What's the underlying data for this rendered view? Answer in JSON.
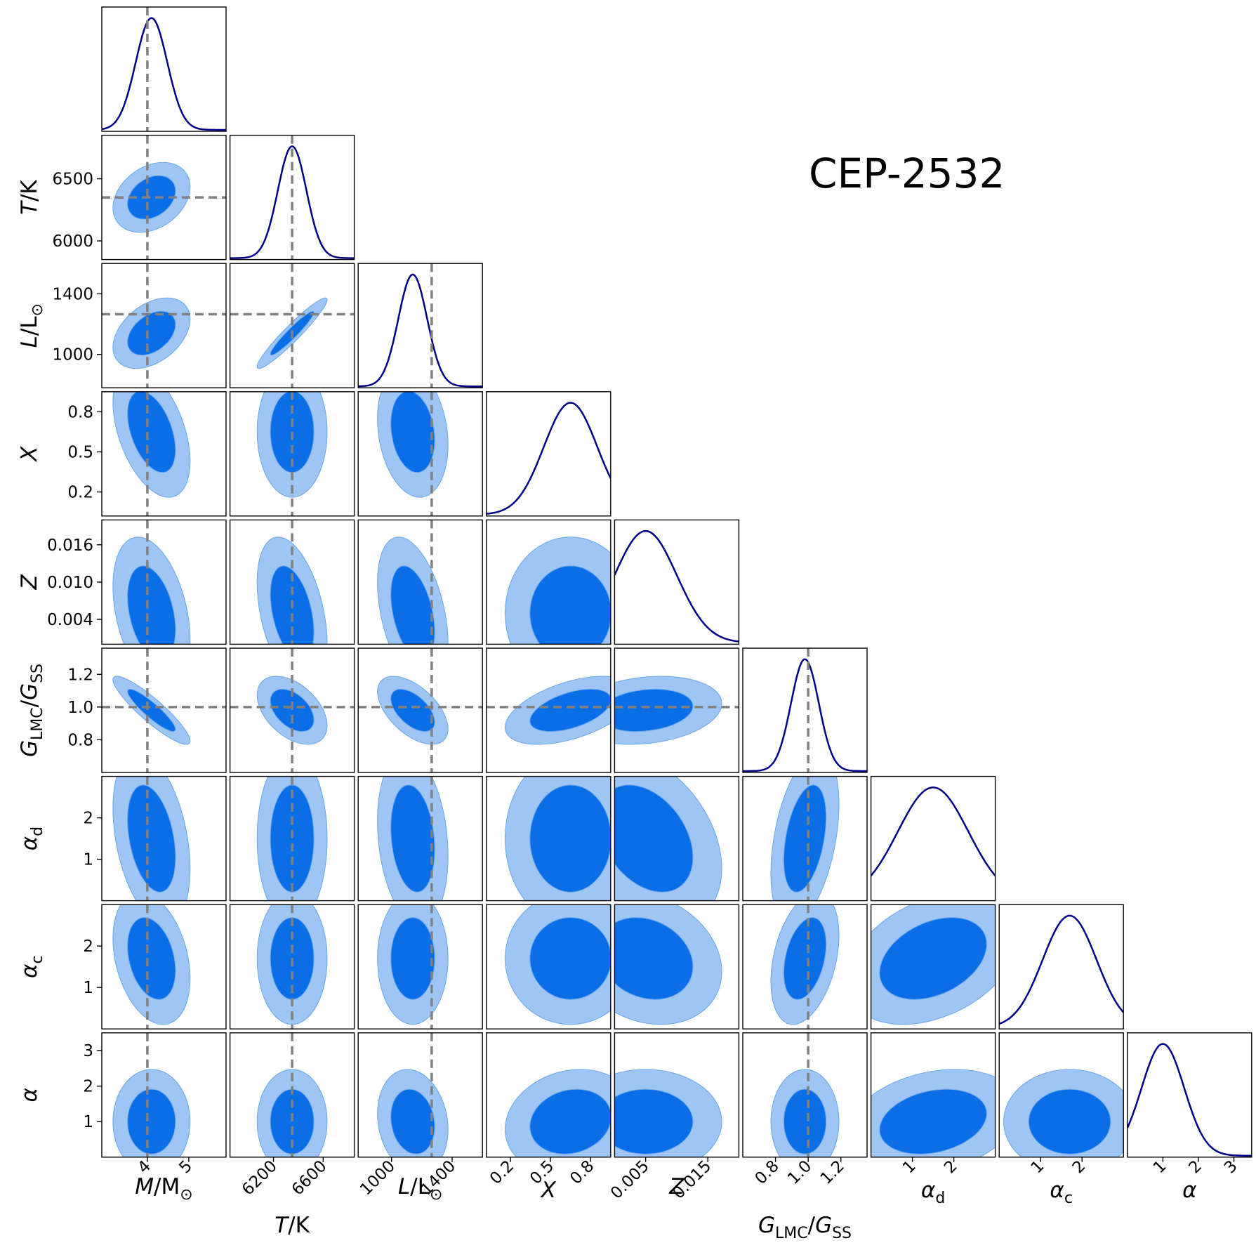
{
  "chart_data": {
    "type": "corner",
    "title": "CEP-2532",
    "colors": {
      "outer_contour": "#9ec5f4",
      "inner_contour": "#0a6ee6",
      "contour_edge": "#6aa6ea",
      "marginal_line": "#00008b",
      "truth_line": "#808080"
    },
    "parameters": [
      {
        "key": "M",
        "label_parts": [
          [
            "i",
            "M"
          ],
          [
            "n",
            "/M"
          ],
          [
            "sub",
            "⊙"
          ]
        ],
        "range": [
          2.9,
          5.9
        ],
        "ticks": [
          4,
          5
        ],
        "tick_labels": [
          "4",
          "5"
        ],
        "truth": 4.0,
        "mean": 4.1,
        "sd": 0.38
      },
      {
        "key": "T",
        "label_parts": [
          [
            "i",
            "T"
          ],
          [
            "n",
            "/K"
          ]
        ],
        "range": [
          5850,
          6850
        ],
        "ticks": [
          6000,
          6500
        ],
        "tick_labels": [
          "6000",
          "6500"
        ],
        "xticks": [
          6200,
          6600
        ],
        "xtick_labels": [
          "6200",
          "6600"
        ],
        "truth": 6350,
        "mean": 6350,
        "sd": 115
      },
      {
        "key": "L",
        "label_parts": [
          [
            "i",
            "L"
          ],
          [
            "n",
            "/L"
          ],
          [
            "sub",
            "⊙"
          ]
        ],
        "range": [
          780,
          1600
        ],
        "ticks": [
          1000,
          1400
        ],
        "tick_labels": [
          "1000",
          "1400"
        ],
        "truth": 1265,
        "mean": 1140,
        "sd": 95
      },
      {
        "key": "X",
        "label_parts": [
          [
            "i",
            "X"
          ]
        ],
        "range": [
          0.02,
          0.95
        ],
        "ticks": [
          0.2,
          0.5,
          0.8
        ],
        "tick_labels": [
          "0.2",
          "0.5",
          "0.8"
        ],
        "truth": null,
        "mean": 0.65,
        "sd": 0.2
      },
      {
        "key": "Z",
        "label_parts": [
          [
            "i",
            "Z"
          ]
        ],
        "range": [
          0.0,
          0.02
        ],
        "ticks": [
          0.004,
          0.01,
          0.016
        ],
        "tick_labels": [
          "0.004",
          "0.010",
          "0.016"
        ],
        "xticks": [
          0.005,
          0.015
        ],
        "xtick_labels": [
          "0.005",
          "0.015"
        ],
        "truth": null,
        "mean": 0.005,
        "sd": 0.005
      },
      {
        "key": "G",
        "label_parts": [
          [
            "i",
            "G"
          ],
          [
            "sub",
            "LMC"
          ],
          [
            "n",
            "/"
          ],
          [
            "i",
            "G"
          ],
          [
            "sub",
            "SS"
          ]
        ],
        "range": [
          0.6,
          1.36
        ],
        "ticks": [
          0.8,
          1.0,
          1.2
        ],
        "tick_labels": [
          "0.8",
          "1.0",
          "1.2"
        ],
        "truth": 1.0,
        "mean": 0.98,
        "sd": 0.085
      },
      {
        "key": "ad",
        "label_parts": [
          [
            "i",
            "α"
          ],
          [
            "sub",
            "d"
          ]
        ],
        "range": [
          0.0,
          3.0
        ],
        "ticks": [
          1,
          2
        ],
        "tick_labels": [
          "1",
          "2"
        ],
        "truth": null,
        "mean": 1.5,
        "sd": 0.85
      },
      {
        "key": "ac",
        "label_parts": [
          [
            "i",
            "α"
          ],
          [
            "sub",
            "c"
          ]
        ],
        "range": [
          0.0,
          3.0
        ],
        "ticks": [
          1,
          2
        ],
        "tick_labels": [
          "1",
          "2"
        ],
        "truth": null,
        "mean": 1.7,
        "sd": 0.65
      },
      {
        "key": "alpha",
        "label_parts": [
          [
            "i",
            "α"
          ]
        ],
        "range": [
          0.0,
          3.5
        ],
        "ticks": [
          1,
          2,
          3
        ],
        "tick_labels": [
          "1",
          "2",
          "3"
        ],
        "truth": null,
        "mean": 1.0,
        "sd": 0.6
      }
    ],
    "correlations": {
      "1-0": 0.3,
      "2-0": 0.4,
      "2-1": 0.95,
      "3-0": -0.45,
      "3-1": 0.0,
      "3-2": -0.2,
      "4-0": -0.35,
      "4-1": -0.4,
      "4-2": -0.4,
      "4-3": 0.0,
      "5-0": -0.9,
      "5-1": -0.45,
      "5-2": -0.55,
      "5-3": 0.5,
      "5-4": 0.2,
      "6-0": -0.35,
      "6-1": 0.0,
      "6-2": -0.2,
      "6-3": 0.0,
      "6-4": -0.35,
      "6-5": 0.4,
      "7-0": -0.3,
      "7-1": 0.0,
      "7-2": 0.0,
      "7-3": 0.0,
      "7-4": -0.2,
      "7-5": 0.35,
      "7-6": 0.35,
      "8-0": 0.0,
      "8-1": 0.0,
      "8-2": -0.15,
      "8-3": 0.15,
      "8-4": 0.0,
      "8-5": 0.0,
      "8-6": 0.25,
      "8-7": 0.0
    }
  }
}
